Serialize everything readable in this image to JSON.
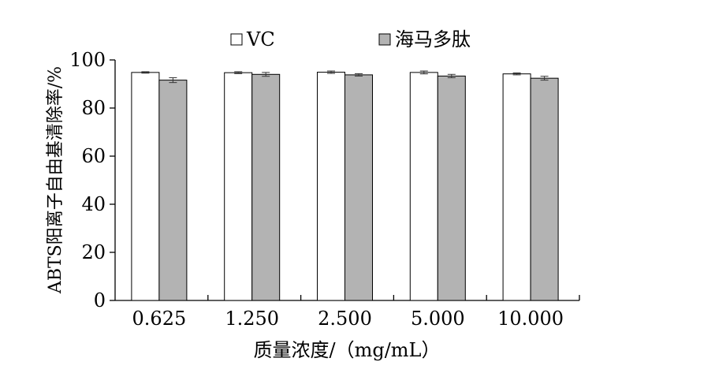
{
  "chart_data": {
    "type": "bar",
    "title": "",
    "xlabel": "质量浓度/（mg/mL）",
    "ylabel": "ABTS阳离子自由基清除率/%",
    "categories": [
      "0.625",
      "1.250",
      "2.500",
      "5.000",
      "10.000"
    ],
    "ylim": [
      0,
      100
    ],
    "yticks": [
      "0",
      "20",
      "40",
      "60",
      "80",
      "100"
    ],
    "grid": false,
    "legend_position": "top",
    "series": [
      {
        "name": "VC",
        "color": "#ffffff",
        "values": [
          94.8,
          94.7,
          94.9,
          94.8,
          94.2
        ],
        "errors": [
          0.3,
          0.4,
          0.5,
          0.6,
          0.4
        ]
      },
      {
        "name": "海马多肽",
        "color": "#b3b3b3",
        "values": [
          91.6,
          94.0,
          93.8,
          93.3,
          92.4
        ],
        "errors": [
          1.0,
          0.8,
          0.5,
          0.7,
          0.8
        ]
      }
    ]
  }
}
